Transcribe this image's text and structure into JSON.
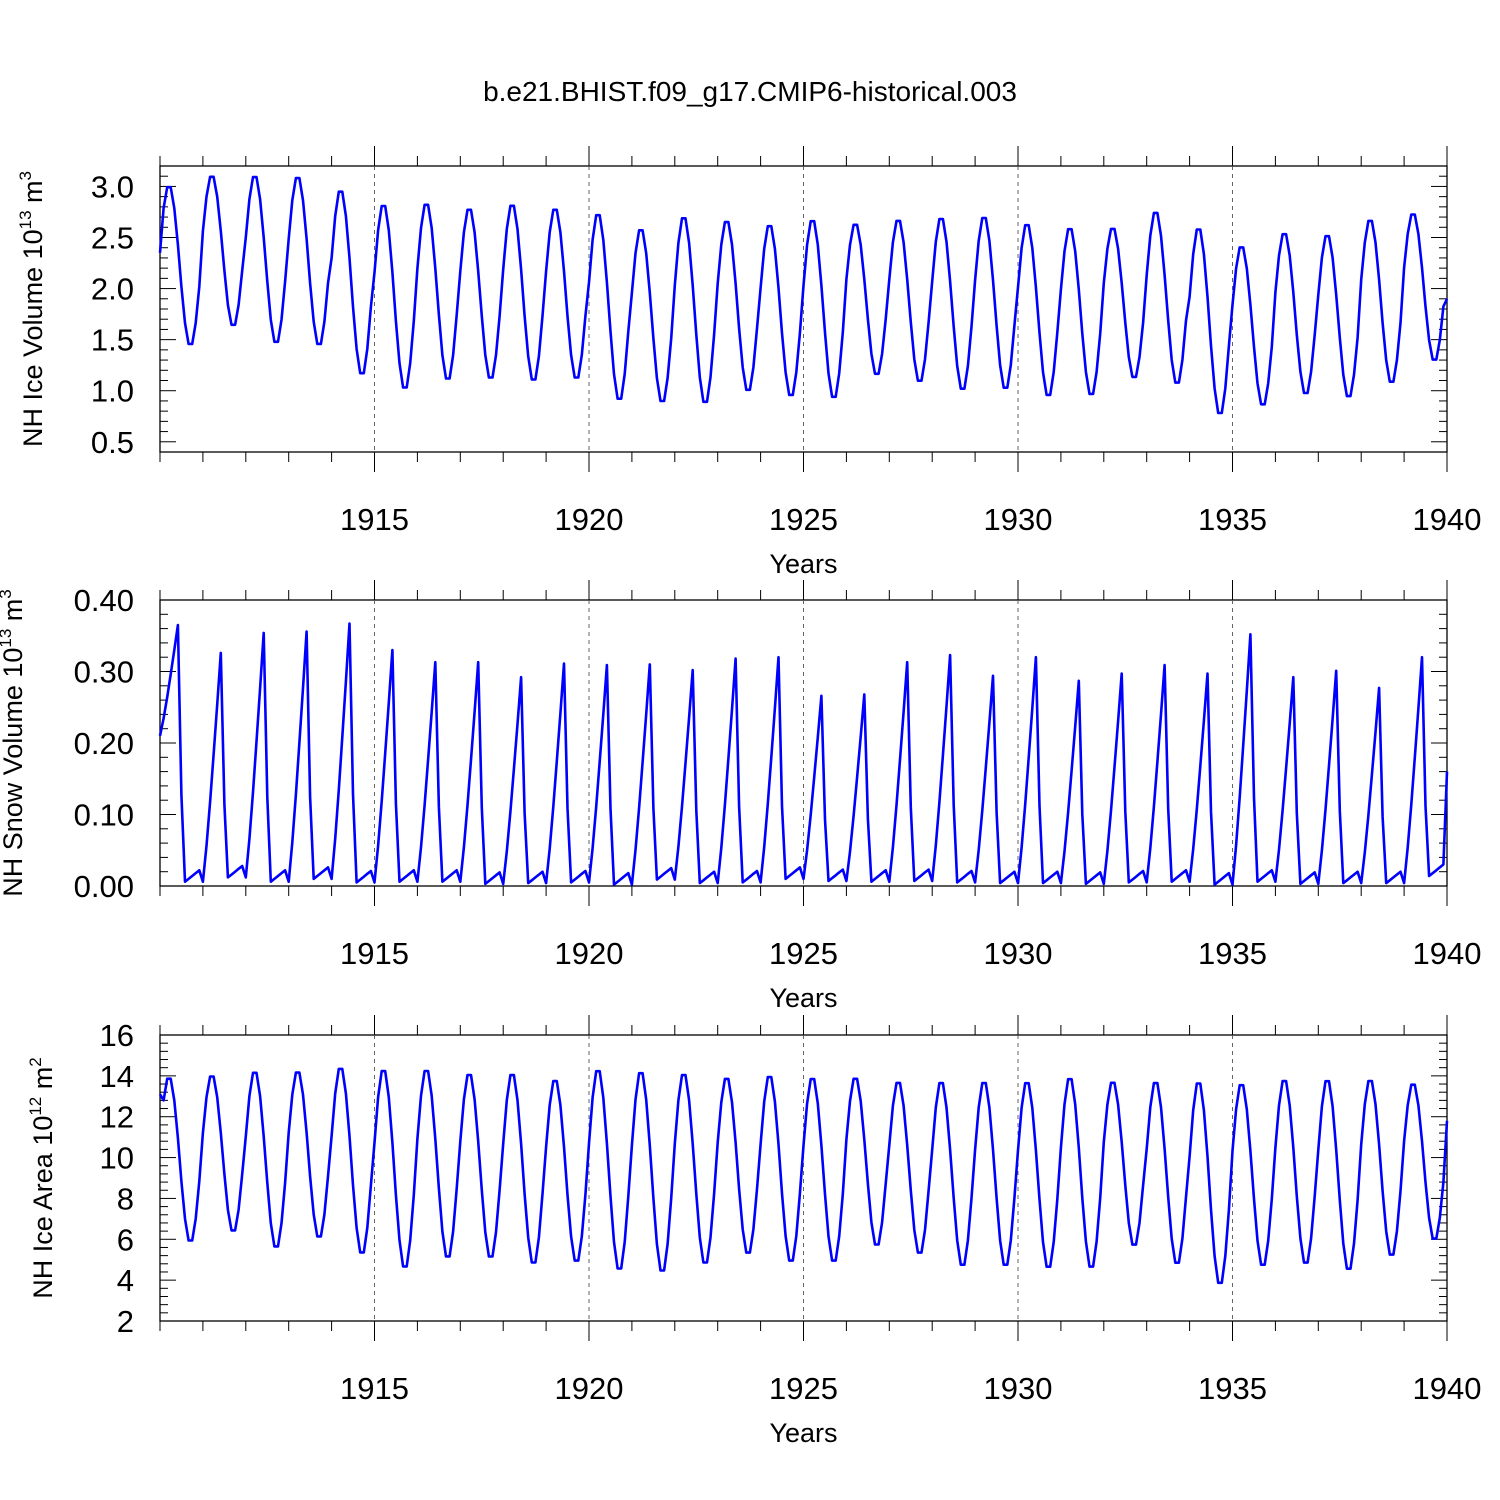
{
  "title": "b.e21.BHIST.f09_g17.CMIP6-historical.003",
  "line_color": "#0000ff",
  "chart_data": [
    {
      "type": "line",
      "ylabel": "NH Ice Volume 10",
      "ylabel_exp": "13",
      "ylabel_unit": " m",
      "ylabel_unit_exp": "3",
      "xlabel": "Years",
      "xlim": [
        1910.0,
        1940.0
      ],
      "ylim": [
        0.4,
        3.2
      ],
      "yticks": [
        "0.5",
        "1.0",
        "1.5",
        "2.0",
        "2.5",
        "3.0"
      ],
      "ytick_values": [
        0.5,
        1.0,
        1.5,
        2.0,
        2.5,
        3.0
      ],
      "xticks": [
        "1915",
        "1920",
        "1925",
        "1930",
        "1935",
        "1940"
      ],
      "xtick_values": [
        1915,
        1920,
        1925,
        1930,
        1935,
        1940
      ],
      "grid": "dashed vertical at major x ticks",
      "series": [
        {
          "name": "NH Ice Volume",
          "seasonal_max": [
            3.02,
            3.12,
            3.12,
            3.11,
            2.98,
            2.84,
            2.85,
            2.8,
            2.84,
            2.8,
            2.75,
            2.6,
            2.72,
            2.68,
            2.64,
            2.69,
            2.65,
            2.69,
            2.71,
            2.72,
            2.65,
            2.61,
            2.61,
            2.77,
            2.61,
            2.43,
            2.56,
            2.54,
            2.69,
            2.75
          ],
          "seasonal_min": [
            1.43,
            1.62,
            1.45,
            1.43,
            1.14,
            1.0,
            1.09,
            1.1,
            1.08,
            1.1,
            0.89,
            0.87,
            0.86,
            0.98,
            0.93,
            0.91,
            1.14,
            1.07,
            0.99,
            1.0,
            0.93,
            0.94,
            1.11,
            1.05,
            0.75,
            0.84,
            0.95,
            0.92,
            1.06,
            1.28
          ],
          "start_value": 2.35,
          "end_value": 1.9
        }
      ]
    },
    {
      "type": "line",
      "ylabel": "NH Snow Volume 10",
      "ylabel_exp": "13",
      "ylabel_unit": " m",
      "ylabel_unit_exp": "3",
      "xlabel": "Years",
      "xlim": [
        1910.0,
        1940.0
      ],
      "ylim": [
        0.0,
        0.4
      ],
      "yticks": [
        "0.00",
        "0.10",
        "0.20",
        "0.30",
        "0.40"
      ],
      "ytick_values": [
        0.0,
        0.1,
        0.2,
        0.3,
        0.4
      ],
      "xticks": [
        "1915",
        "1920",
        "1925",
        "1930",
        "1935",
        "1940"
      ],
      "xtick_values": [
        1915,
        1920,
        1925,
        1930,
        1935,
        1940
      ],
      "grid": "dashed vertical at major x ticks",
      "series": [
        {
          "name": "NH Snow Volume",
          "seasonal_max": [
            0.365,
            0.326,
            0.354,
            0.356,
            0.367,
            0.33,
            0.313,
            0.313,
            0.292,
            0.311,
            0.309,
            0.31,
            0.302,
            0.318,
            0.32,
            0.266,
            0.268,
            0.313,
            0.323,
            0.294,
            0.32,
            0.287,
            0.297,
            0.309,
            0.297,
            0.352,
            0.292,
            0.301,
            0.277,
            0.32
          ],
          "seasonal_min": [
            0.006,
            0.012,
            0.006,
            0.01,
            0.005,
            0.006,
            0.006,
            0.003,
            0.004,
            0.005,
            0.002,
            0.009,
            0.004,
            0.005,
            0.01,
            0.007,
            0.006,
            0.007,
            0.005,
            0.004,
            0.004,
            0.003,
            0.005,
            0.006,
            0.002,
            0.006,
            0.003,
            0.004,
            0.004,
            0.014
          ],
          "start_value": 0.21,
          "end_value": 0.16
        }
      ]
    },
    {
      "type": "line",
      "ylabel": "NH Ice Area 10",
      "ylabel_exp": "12",
      "ylabel_unit": " m",
      "ylabel_unit_exp": "2",
      "xlabel": "Years",
      "xlim": [
        1910.0,
        1940.0
      ],
      "ylim": [
        2,
        16
      ],
      "yticks": [
        "2",
        "4",
        "6",
        "8",
        "10",
        "12",
        "14",
        "16"
      ],
      "ytick_values": [
        2,
        4,
        6,
        8,
        10,
        12,
        14,
        16
      ],
      "xticks": [
        "1915",
        "1920",
        "1925",
        "1930",
        "1935",
        "1940"
      ],
      "xtick_values": [
        1915,
        1920,
        1925,
        1930,
        1935,
        1940
      ],
      "grid": "dashed vertical at major x ticks",
      "series": [
        {
          "name": "NH Ice Area",
          "seasonal_max": [
            14.0,
            14.1,
            14.3,
            14.3,
            14.5,
            14.4,
            14.4,
            14.2,
            14.2,
            13.9,
            14.4,
            14.3,
            14.2,
            14.0,
            14.1,
            14.0,
            14.0,
            13.8,
            13.8,
            13.8,
            13.8,
            14.0,
            13.8,
            13.8,
            13.8,
            13.7,
            13.9,
            13.9,
            13.9,
            13.7
          ],
          "seasonal_min": [
            5.8,
            6.3,
            5.5,
            6.0,
            5.2,
            4.5,
            5.0,
            5.0,
            4.7,
            4.8,
            4.4,
            4.3,
            4.7,
            5.2,
            4.8,
            4.8,
            5.6,
            5.2,
            4.6,
            4.6,
            4.5,
            4.5,
            5.6,
            4.7,
            3.7,
            4.6,
            4.7,
            4.4,
            5.1,
            5.9
          ],
          "start_value": 13.1,
          "end_value": 11.8
        }
      ]
    }
  ]
}
